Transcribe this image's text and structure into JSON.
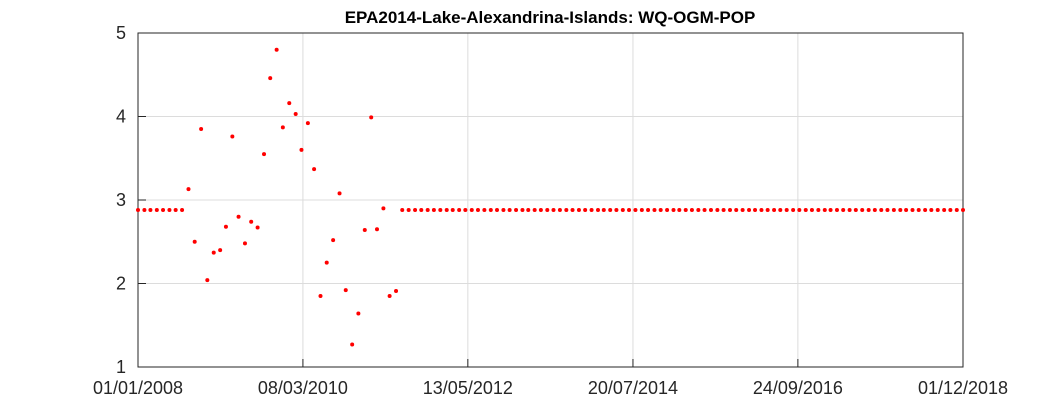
{
  "chart_data": {
    "type": "scatter",
    "title": "EPA2014-Lake-Alexandrina-Islands: WQ-OGM-POP",
    "xlabel": "",
    "ylabel": "",
    "x_axis_kind": "date",
    "xlim": [
      "2008-01-01",
      "2018-12-01"
    ],
    "ylim": [
      1,
      5
    ],
    "x_ticks": [
      "01/01/2008",
      "08/03/2010",
      "13/05/2012",
      "20/07/2014",
      "24/09/2016",
      "01/12/2018"
    ],
    "x_tick_dates": [
      "2008-01-01",
      "2010-03-08",
      "2012-05-13",
      "2014-07-20",
      "2016-09-24",
      "2018-12-01"
    ],
    "y_ticks": [
      "1",
      "2",
      "3",
      "4",
      "5"
    ],
    "grid": true,
    "marker_color": "#ff0000",
    "series": [
      {
        "points": [
          [
            "2008-01-01",
            2.88
          ],
          [
            "2008-02-01",
            2.88
          ],
          [
            "2008-03-01",
            2.88
          ],
          [
            "2008-04-01",
            2.88
          ],
          [
            "2008-05-01",
            2.88
          ],
          [
            "2008-06-01",
            2.88
          ],
          [
            "2008-07-01",
            2.88
          ],
          [
            "2008-08-01",
            2.88
          ],
          [
            "2008-09-01",
            3.13
          ],
          [
            "2008-10-01",
            2.5
          ],
          [
            "2008-11-01",
            3.85
          ],
          [
            "2008-12-01",
            2.04
          ],
          [
            "2009-01-01",
            2.37
          ],
          [
            "2009-02-01",
            2.4
          ],
          [
            "2009-03-01",
            2.68
          ],
          [
            "2009-04-01",
            3.76
          ],
          [
            "2009-05-01",
            2.8
          ],
          [
            "2009-06-01",
            2.48
          ],
          [
            "2009-07-01",
            2.74
          ],
          [
            "2009-08-01",
            2.67
          ],
          [
            "2009-09-01",
            3.55
          ],
          [
            "2009-10-01",
            4.46
          ],
          [
            "2009-11-01",
            4.8
          ],
          [
            "2009-12-01",
            3.87
          ],
          [
            "2010-01-01",
            4.16
          ],
          [
            "2010-02-01",
            4.03
          ],
          [
            "2010-03-01",
            3.6
          ],
          [
            "2010-04-01",
            3.92
          ],
          [
            "2010-05-01",
            3.37
          ],
          [
            "2010-06-01",
            1.85
          ],
          [
            "2010-07-01",
            2.25
          ],
          [
            "2010-08-01",
            2.52
          ],
          [
            "2010-09-01",
            3.08
          ],
          [
            "2010-10-01",
            1.92
          ],
          [
            "2010-11-01",
            1.27
          ],
          [
            "2010-12-01",
            1.64
          ],
          [
            "2011-01-01",
            2.64
          ],
          [
            "2011-02-01",
            3.99
          ],
          [
            "2011-03-01",
            2.65
          ],
          [
            "2011-04-01",
            2.9
          ],
          [
            "2011-05-01",
            1.85
          ],
          [
            "2011-06-01",
            1.91
          ],
          [
            "2011-07-01",
            2.88
          ]
        ],
        "constant_after": {
          "from": "2011-07-01",
          "to": "2018-12-01",
          "step_months": 1,
          "value": 2.88
        }
      }
    ]
  }
}
